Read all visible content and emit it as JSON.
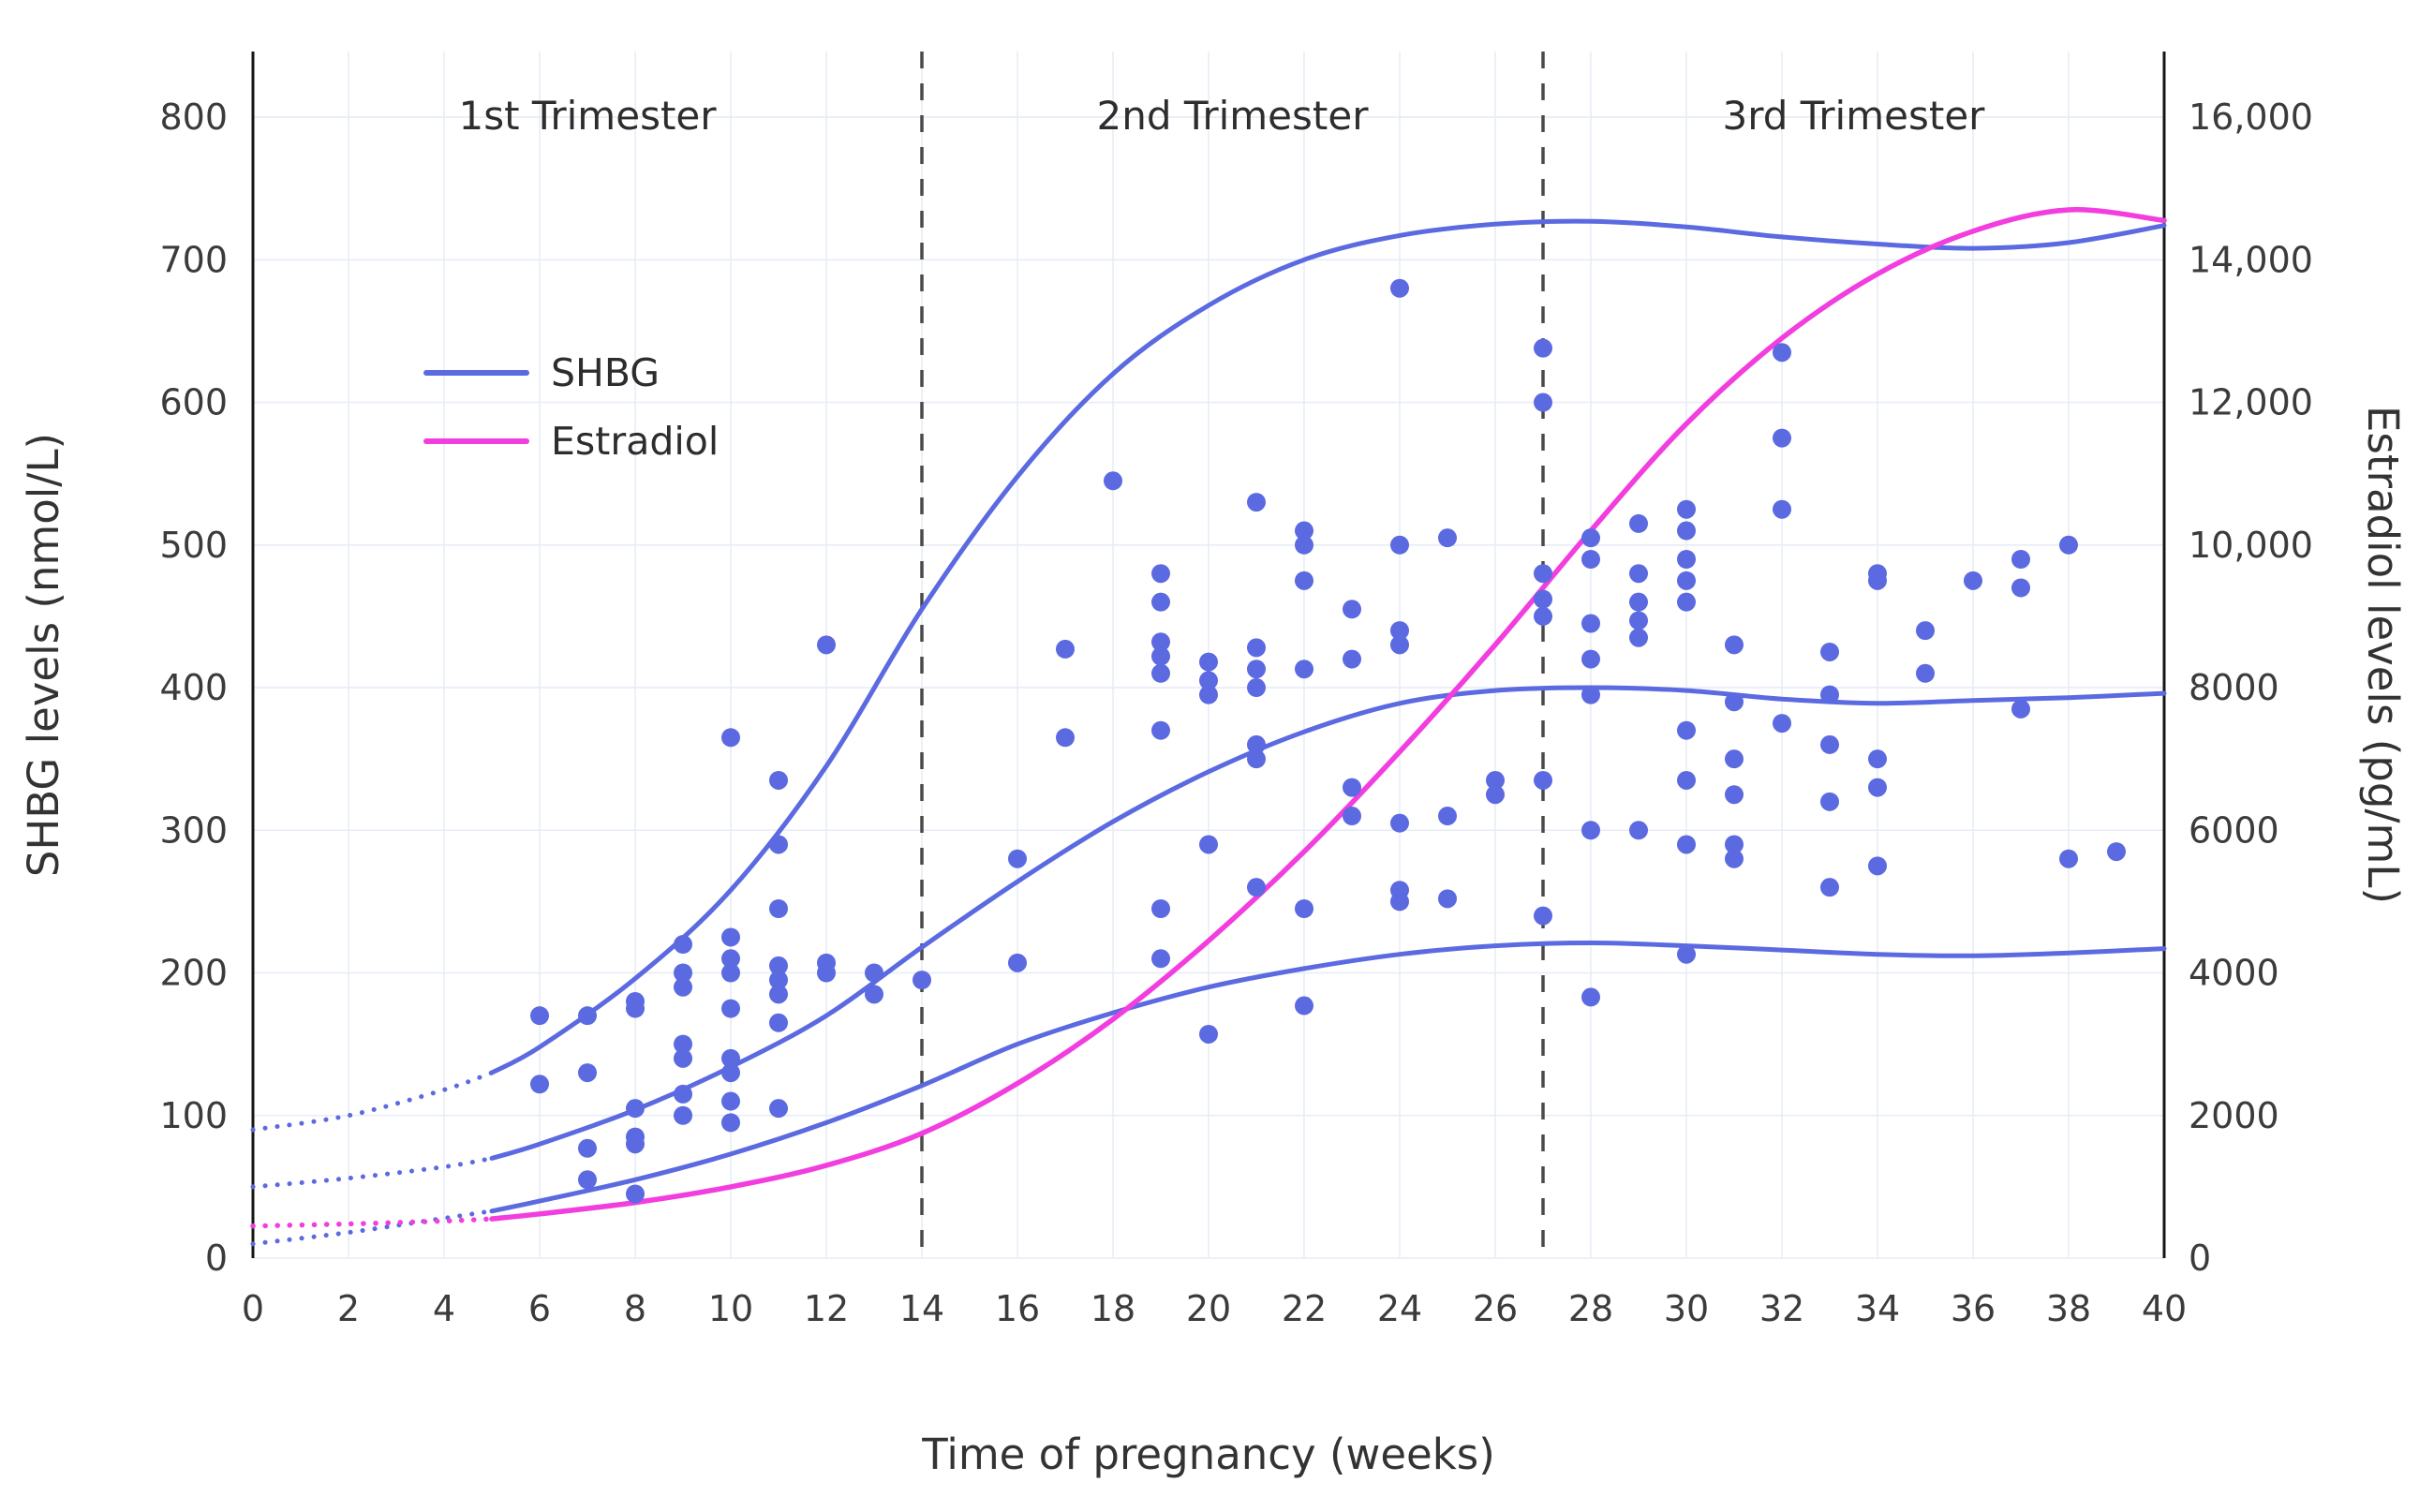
{
  "chart_data": {
    "type": "scatter",
    "title": "",
    "xlabel": "Time of pregnancy (weeks)",
    "ylabel_left": "SHBG levels (nmol/L)",
    "ylabel_right": "Estradiol levels (pg/mL)",
    "xlim": [
      0,
      40
    ],
    "ylim_left": [
      0,
      846
    ],
    "ylim_right": [
      0,
      16920
    ],
    "grid": true,
    "x_ticks": [
      0,
      2,
      4,
      6,
      8,
      10,
      12,
      14,
      16,
      18,
      20,
      22,
      24,
      26,
      28,
      30,
      32,
      34,
      36,
      38,
      40
    ],
    "y_left_ticks": [
      0,
      100,
      200,
      300,
      400,
      500,
      600,
      700,
      800
    ],
    "y_right_ticks": [
      {
        "value": 0,
        "label": "0"
      },
      {
        "value": 2000,
        "label": "2000"
      },
      {
        "value": 4000,
        "label": "4000"
      },
      {
        "value": 6000,
        "label": "6000"
      },
      {
        "value": 8000,
        "label": "8000"
      },
      {
        "value": 10000,
        "label": "10,000"
      },
      {
        "value": 12000,
        "label": "12,000"
      },
      {
        "value": 14000,
        "label": "14,000"
      },
      {
        "value": 16000,
        "label": "16,000"
      }
    ],
    "trimester_dividers": [
      14,
      27
    ],
    "annotations": [
      {
        "label": "1st Trimester",
        "week_center": 7
      },
      {
        "label": "2nd Trimester",
        "week_center": 20.5
      },
      {
        "label": "3rd Trimester",
        "week_center": 33.5
      }
    ],
    "legend": [
      {
        "name": "SHBG",
        "color": "#5b6ae0"
      },
      {
        "name": "Estradiol",
        "color": "#f23ddf"
      }
    ],
    "colors": {
      "shbg": "#5b6ae0",
      "estradiol": "#f23ddf",
      "grid": "#e7ecf7",
      "axis_line": "#161616",
      "divider": "#4a4a4a",
      "text": "#3b3b3b"
    },
    "curves": [
      {
        "name": "shbg-upper-band",
        "axis": "left",
        "color": "#5b6ae0",
        "width": 5,
        "dotted_points": [
          [
            0,
            90
          ],
          [
            2,
            100
          ],
          [
            4,
            118
          ],
          [
            5,
            130
          ]
        ],
        "points": [
          [
            5,
            130
          ],
          [
            6,
            148
          ],
          [
            8,
            196
          ],
          [
            10,
            258
          ],
          [
            12,
            345
          ],
          [
            14,
            455
          ],
          [
            16,
            548
          ],
          [
            18,
            620
          ],
          [
            20,
            668
          ],
          [
            22,
            700
          ],
          [
            24,
            717
          ],
          [
            26,
            725
          ],
          [
            28,
            727
          ],
          [
            30,
            723
          ],
          [
            32,
            716
          ],
          [
            34,
            711
          ],
          [
            36,
            708
          ],
          [
            38,
            712
          ],
          [
            40,
            724
          ]
        ]
      },
      {
        "name": "shbg-median",
        "axis": "left",
        "color": "#5b6ae0",
        "width": 5,
        "dotted_points": [
          [
            0,
            50
          ],
          [
            2,
            56
          ],
          [
            4,
            64
          ],
          [
            5,
            70
          ]
        ],
        "points": [
          [
            5,
            70
          ],
          [
            6,
            80
          ],
          [
            8,
            104
          ],
          [
            10,
            134
          ],
          [
            12,
            170
          ],
          [
            14,
            218
          ],
          [
            16,
            264
          ],
          [
            18,
            306
          ],
          [
            20,
            341
          ],
          [
            22,
            369
          ],
          [
            24,
            389
          ],
          [
            26,
            398
          ],
          [
            28,
            400
          ],
          [
            30,
            398
          ],
          [
            32,
            392
          ],
          [
            34,
            389
          ],
          [
            36,
            391
          ],
          [
            38,
            393
          ],
          [
            40,
            396
          ]
        ]
      },
      {
        "name": "shbg-lower-band",
        "axis": "left",
        "color": "#5b6ae0",
        "width": 5,
        "dotted_points": [
          [
            0,
            10
          ],
          [
            2,
            18
          ],
          [
            4,
            28
          ],
          [
            5,
            33
          ]
        ],
        "points": [
          [
            5,
            33
          ],
          [
            6,
            40
          ],
          [
            8,
            55
          ],
          [
            10,
            73
          ],
          [
            12,
            95
          ],
          [
            14,
            121
          ],
          [
            16,
            150
          ],
          [
            18,
            172
          ],
          [
            20,
            190
          ],
          [
            22,
            203
          ],
          [
            24,
            213
          ],
          [
            26,
            219
          ],
          [
            28,
            221
          ],
          [
            30,
            219
          ],
          [
            32,
            216
          ],
          [
            34,
            213
          ],
          [
            36,
            212
          ],
          [
            38,
            214
          ],
          [
            40,
            217
          ]
        ]
      },
      {
        "name": "estradiol",
        "axis": "right",
        "color": "#f23ddf",
        "width": 5.5,
        "dotted_points": [
          [
            0,
            450
          ],
          [
            2,
            480
          ],
          [
            4,
            520
          ],
          [
            5,
            550
          ]
        ],
        "points": [
          [
            5,
            550
          ],
          [
            6,
            620
          ],
          [
            8,
            780
          ],
          [
            10,
            1000
          ],
          [
            12,
            1300
          ],
          [
            14,
            1750
          ],
          [
            16,
            2450
          ],
          [
            18,
            3350
          ],
          [
            20,
            4450
          ],
          [
            22,
            5700
          ],
          [
            24,
            7100
          ],
          [
            26,
            8600
          ],
          [
            28,
            10200
          ],
          [
            30,
            11700
          ],
          [
            32,
            12900
          ],
          [
            34,
            13800
          ],
          [
            36,
            14400
          ],
          [
            38,
            14700
          ],
          [
            40,
            14550
          ]
        ]
      }
    ],
    "scatter": {
      "name": "shbg-individual-measurements",
      "color": "#5b6ae0",
      "points": [
        [
          6,
          122
        ],
        [
          6,
          170
        ],
        [
          7,
          55
        ],
        [
          7,
          77
        ],
        [
          7,
          130
        ],
        [
          7,
          170
        ],
        [
          8,
          45
        ],
        [
          8,
          80
        ],
        [
          8,
          85
        ],
        [
          8,
          105
        ],
        [
          8,
          175
        ],
        [
          8,
          180
        ],
        [
          9,
          100
        ],
        [
          9,
          115
        ],
        [
          9,
          140
        ],
        [
          9,
          150
        ],
        [
          9,
          190
        ],
        [
          9,
          200
        ],
        [
          9,
          220
        ],
        [
          10,
          95
        ],
        [
          10,
          110
        ],
        [
          10,
          130
        ],
        [
          10,
          140
        ],
        [
          10,
          175
        ],
        [
          10,
          200
        ],
        [
          10,
          210
        ],
        [
          10,
          225
        ],
        [
          10,
          365
        ],
        [
          11,
          105
        ],
        [
          11,
          165
        ],
        [
          11,
          185
        ],
        [
          11,
          195
        ],
        [
          11,
          205
        ],
        [
          11,
          245
        ],
        [
          11,
          290
        ],
        [
          11,
          335
        ],
        [
          12,
          200
        ],
        [
          12,
          207
        ],
        [
          12,
          430
        ],
        [
          13,
          185
        ],
        [
          13,
          200
        ],
        [
          14,
          195
        ],
        [
          16,
          207
        ],
        [
          16,
          280
        ],
        [
          17,
          365
        ],
        [
          17,
          427
        ],
        [
          18,
          545
        ],
        [
          19,
          210
        ],
        [
          19,
          245
        ],
        [
          19,
          370
        ],
        [
          19,
          410
        ],
        [
          19,
          422
        ],
        [
          19,
          432
        ],
        [
          19,
          460
        ],
        [
          19,
          480
        ],
        [
          20,
          157
        ],
        [
          20,
          290
        ],
        [
          20,
          395
        ],
        [
          20,
          405
        ],
        [
          20,
          418
        ],
        [
          21,
          260
        ],
        [
          21,
          350
        ],
        [
          21,
          360
        ],
        [
          21,
          400
        ],
        [
          21,
          413
        ],
        [
          21,
          428
        ],
        [
          21,
          530
        ],
        [
          22,
          177
        ],
        [
          22,
          245
        ],
        [
          22,
          413
        ],
        [
          22,
          475
        ],
        [
          22,
          500
        ],
        [
          22,
          510
        ],
        [
          23,
          310
        ],
        [
          23,
          330
        ],
        [
          23,
          420
        ],
        [
          23,
          455
        ],
        [
          24,
          250
        ],
        [
          24,
          258
        ],
        [
          24,
          305
        ],
        [
          24,
          430
        ],
        [
          24,
          440
        ],
        [
          24,
          500
        ],
        [
          24,
          680
        ],
        [
          25,
          252
        ],
        [
          25,
          310
        ],
        [
          25,
          505
        ],
        [
          26,
          325
        ],
        [
          26,
          335
        ],
        [
          27,
          240
        ],
        [
          27,
          335
        ],
        [
          27,
          450
        ],
        [
          27,
          462
        ],
        [
          27,
          480
        ],
        [
          27,
          600
        ],
        [
          27,
          638
        ],
        [
          28,
          183
        ],
        [
          28,
          300
        ],
        [
          28,
          395
        ],
        [
          28,
          420
        ],
        [
          28,
          445
        ],
        [
          28,
          490
        ],
        [
          28,
          505
        ],
        [
          29,
          300
        ],
        [
          29,
          435
        ],
        [
          29,
          447
        ],
        [
          29,
          460
        ],
        [
          29,
          480
        ],
        [
          29,
          515
        ],
        [
          30,
          213
        ],
        [
          30,
          290
        ],
        [
          30,
          335
        ],
        [
          30,
          370
        ],
        [
          30,
          460
        ],
        [
          30,
          475
        ],
        [
          30,
          490
        ],
        [
          30,
          510
        ],
        [
          30,
          525
        ],
        [
          31,
          280
        ],
        [
          31,
          290
        ],
        [
          31,
          325
        ],
        [
          31,
          350
        ],
        [
          31,
          390
        ],
        [
          31,
          430
        ],
        [
          32,
          375
        ],
        [
          32,
          525
        ],
        [
          32,
          575
        ],
        [
          32,
          635
        ],
        [
          33,
          260
        ],
        [
          33,
          320
        ],
        [
          33,
          360
        ],
        [
          33,
          395
        ],
        [
          33,
          425
        ],
        [
          34,
          275
        ],
        [
          34,
          330
        ],
        [
          34,
          350
        ],
        [
          34,
          475
        ],
        [
          34,
          480
        ],
        [
          35,
          410
        ],
        [
          35,
          440
        ],
        [
          36,
          475
        ],
        [
          37,
          385
        ],
        [
          37,
          470
        ],
        [
          37,
          490
        ],
        [
          38,
          280
        ],
        [
          38,
          500
        ],
        [
          39,
          285
        ]
      ]
    }
  }
}
